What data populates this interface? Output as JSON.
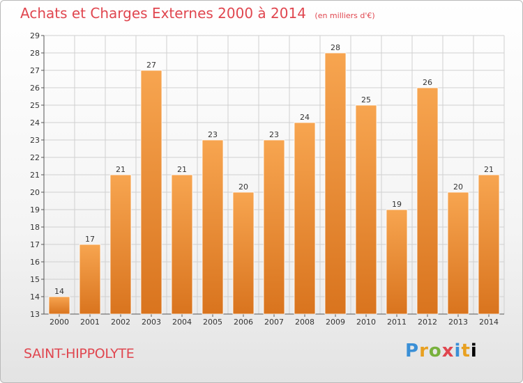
{
  "header": {
    "title": "Achats et Charges Externes 2000 à 2014",
    "unit": "(en milliers d'€)"
  },
  "footer": {
    "commune": "SAINT-HIPPOLYTE",
    "logo_letters": [
      "P",
      "r",
      "o",
      "x",
      "i",
      "t",
      "i"
    ]
  },
  "colors": {
    "bar_light": "#f7a550",
    "bar_dark": "#d9741e",
    "title": "#e0464f"
  },
  "chart_data": {
    "type": "bar",
    "title": "Achats et Charges Externes 2000 à 2014",
    "categories": [
      "2000",
      "2001",
      "2002",
      "2003",
      "2004",
      "2005",
      "2006",
      "2007",
      "2008",
      "2009",
      "2010",
      "2011",
      "2012",
      "2013",
      "2014"
    ],
    "values": [
      14,
      17,
      21,
      27,
      21,
      23,
      20,
      23,
      24,
      28,
      25,
      19,
      26,
      20,
      21
    ],
    "ylim": [
      13,
      29
    ],
    "yticks": [
      13,
      14,
      15,
      16,
      17,
      18,
      19,
      20,
      21,
      22,
      23,
      24,
      25,
      26,
      27,
      28,
      29
    ],
    "grid": true,
    "legend": "none"
  }
}
